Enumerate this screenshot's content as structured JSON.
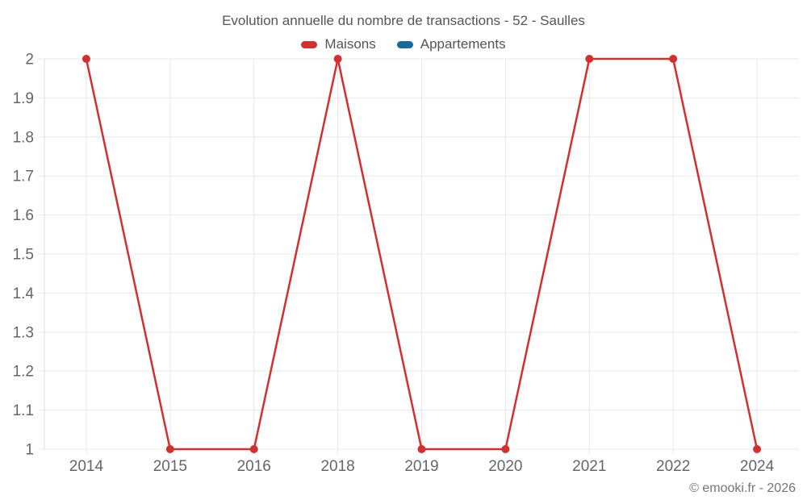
{
  "page": {
    "footer": "© emooki.fr - 2026"
  },
  "chart_data": {
    "type": "line",
    "title": "Evolution annuelle du nombre de transactions - 52 - Saulles",
    "categories": [
      "2014",
      "2015",
      "2016",
      "2018",
      "2019",
      "2020",
      "2021",
      "2022",
      "2024"
    ],
    "series": [
      {
        "name": "Maisons",
        "color": "#d32f2f",
        "values": [
          2,
          1,
          1,
          2,
          1,
          1,
          2,
          2,
          1
        ]
      },
      {
        "name": "Appartements",
        "color": "#17699f",
        "values": []
      }
    ],
    "xlabel": "",
    "ylabel": "",
    "ylim": [
      1,
      2
    ],
    "ytick_step": 0.1,
    "ytick_labels": [
      "1",
      "1.1",
      "1.2",
      "1.3",
      "1.4",
      "1.5",
      "1.6",
      "1.7",
      "1.8",
      "1.9",
      "2"
    ],
    "grid": true,
    "legend_position": "top",
    "marker_radius": 5,
    "line_width": 2.5,
    "colors": {
      "grid": "#e8e8e8",
      "axis": "#dcdcdc",
      "tick_text": "#666666",
      "title_text": "#555555",
      "footer_text": "#757575"
    }
  }
}
